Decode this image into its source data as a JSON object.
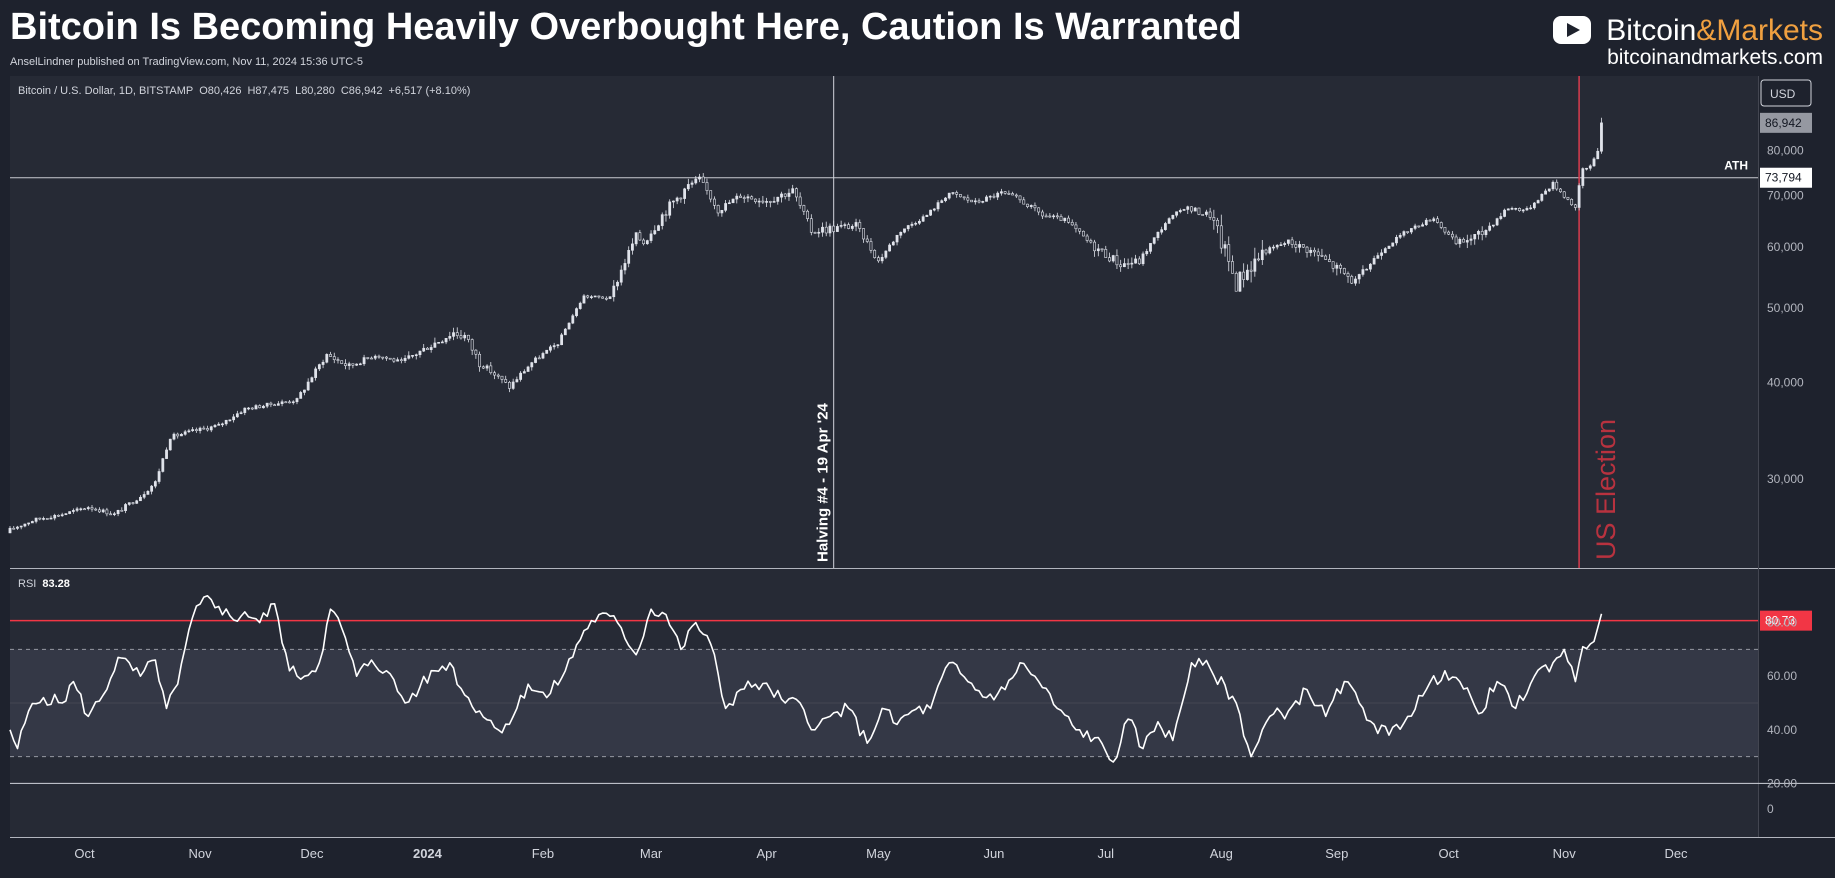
{
  "header": {
    "title": "Bitcoin Is Becoming Heavily Overbought Here, Caution Is Warranted",
    "published": "AnselLindner published on TradingView.com, Nov 11, 2024 15:36 UTC-5"
  },
  "brand": {
    "icon": "play-button-icon",
    "name_part1": "Bitcoin",
    "name_amp": "&",
    "name_part2": "Markets",
    "url": "bitcoinandmarkets.com"
  },
  "colors": {
    "background": "#1e222d",
    "pane": "#262a35",
    "candle": "#e0e3eb",
    "rsi_line": "#ffffff",
    "rsi_band": "#343846",
    "election_line": "#d93c4e",
    "overbought_line": "#f23645"
  },
  "chart_data": [
    {
      "type": "candlestick",
      "symbol_label": "Bitcoin / U.S. Dollar, 1D, BITSTAMP",
      "ohlc": {
        "O": "80,426",
        "H": "87,475",
        "L": "80,280",
        "C": "86,942"
      },
      "change": "+6,517 (+8.10%)",
      "currency": "USD",
      "last_price": 86942,
      "last_price_label": "86,942",
      "yscale": "log",
      "ylim": [
        23000,
        100000
      ],
      "y_ticks": [
        30000,
        40000,
        50000,
        60000,
        70000,
        80000
      ],
      "y_tick_labels": [
        "30,000",
        "40,000",
        "50,000",
        "60,000",
        "70,000",
        "80,000"
      ],
      "x_range": [
        "2023-09-11",
        "2024-12-23"
      ],
      "x_ticks": [
        {
          "date": "2023-10-01",
          "label": "Oct",
          "bold": false
        },
        {
          "date": "2023-11-01",
          "label": "Nov",
          "bold": false
        },
        {
          "date": "2023-12-01",
          "label": "Dec",
          "bold": false
        },
        {
          "date": "2024-01-01",
          "label": "2024",
          "bold": true
        },
        {
          "date": "2024-02-01",
          "label": "Feb",
          "bold": false
        },
        {
          "date": "2024-03-01",
          "label": "Mar",
          "bold": false
        },
        {
          "date": "2024-04-01",
          "label": "Apr",
          "bold": false
        },
        {
          "date": "2024-05-01",
          "label": "May",
          "bold": false
        },
        {
          "date": "2024-06-01",
          "label": "Jun",
          "bold": false
        },
        {
          "date": "2024-07-01",
          "label": "Jul",
          "bold": false
        },
        {
          "date": "2024-08-01",
          "label": "Aug",
          "bold": false
        },
        {
          "date": "2024-09-01",
          "label": "Sep",
          "bold": false
        },
        {
          "date": "2024-10-01",
          "label": "Oct",
          "bold": false
        },
        {
          "date": "2024-11-01",
          "label": "Nov",
          "bold": false
        },
        {
          "date": "2024-12-01",
          "label": "Dec",
          "bold": false
        }
      ],
      "ath": {
        "value": 73794,
        "label": "ATH",
        "value_label": "73,794"
      },
      "annotations": [
        {
          "date": "2024-04-19",
          "label": "Halving #4 - 19 Apr '24"
        },
        {
          "date": "2024-11-05",
          "label": "US Election"
        }
      ],
      "series": [
        {
          "name": "",
          "x": [
            "2023-09-11",
            "2023-09-18",
            "2023-09-25",
            "2023-10-02",
            "2023-10-09",
            "2023-10-16",
            "2023-10-20",
            "2023-10-24",
            "2023-10-30",
            "2023-11-06",
            "2023-11-13",
            "2023-11-20",
            "2023-11-27",
            "2023-12-05",
            "2023-12-11",
            "2023-12-18",
            "2023-12-25",
            "2024-01-01",
            "2024-01-08",
            "2024-01-11",
            "2024-01-15",
            "2024-01-23",
            "2024-01-29",
            "2024-02-05",
            "2024-02-12",
            "2024-02-19",
            "2024-02-26",
            "2024-02-28",
            "2024-03-05",
            "2024-03-11",
            "2024-03-14",
            "2024-03-19",
            "2024-03-25",
            "2024-04-01",
            "2024-04-08",
            "2024-04-13",
            "2024-04-19",
            "2024-04-25",
            "2024-05-01",
            "2024-05-07",
            "2024-05-14",
            "2024-05-20",
            "2024-05-27",
            "2024-06-03",
            "2024-06-07",
            "2024-06-14",
            "2024-06-20",
            "2024-06-27",
            "2024-07-05",
            "2024-07-10",
            "2024-07-17",
            "2024-07-22",
            "2024-07-29",
            "2024-08-05",
            "2024-08-12",
            "2024-08-19",
            "2024-08-26",
            "2024-09-06",
            "2024-09-13",
            "2024-09-20",
            "2024-09-27",
            "2024-10-03",
            "2024-10-10",
            "2024-10-17",
            "2024-10-22",
            "2024-10-29",
            "2024-11-04",
            "2024-11-06",
            "2024-11-08",
            "2024-11-10",
            "2024-11-11"
          ],
          "close": [
            25800,
            26600,
            27000,
            27600,
            27000,
            28500,
            29700,
            34000,
            34600,
            35200,
            37000,
            37500,
            38000,
            43500,
            42000,
            43500,
            42500,
            44500,
            46500,
            46000,
            42500,
            39500,
            42500,
            45000,
            51800,
            51500,
            62000,
            61000,
            67000,
            72000,
            73500,
            67000,
            70000,
            69000,
            71000,
            63000,
            63500,
            64000,
            57500,
            63000,
            66000,
            70500,
            68500,
            70500,
            69500,
            66000,
            65000,
            60500,
            57000,
            57500,
            64500,
            67500,
            66000,
            54000,
            59000,
            61000,
            59000,
            54000,
            59500,
            63000,
            65500,
            60500,
            62500,
            67500,
            67000,
            72500,
            67500,
            75500,
            76500,
            80400,
            86942
          ],
          "high": [
            26200,
            27000,
            27400,
            28000,
            27600,
            29000,
            30200,
            35000,
            35300,
            36000,
            37800,
            38200,
            38800,
            44500,
            43200,
            44200,
            43500,
            45500,
            48000,
            47000,
            43500,
            40500,
            43800,
            46000,
            52500,
            52500,
            63500,
            64000,
            69000,
            73300,
            73794,
            68500,
            71500,
            71500,
            72500,
            65500,
            65000,
            64800,
            59500,
            64500,
            67500,
            71800,
            70500,
            72000,
            71500,
            67500,
            66500,
            62000,
            58500,
            59000,
            65500,
            68500,
            70000,
            62500,
            61000,
            61500,
            64000,
            56500,
            60500,
            64000,
            66500,
            64000,
            63500,
            68500,
            68500,
            73500,
            69500,
            76500,
            77500,
            81500,
            87475
          ],
          "low": [
            25500,
            26200,
            26600,
            27200,
            26600,
            28000,
            29000,
            33800,
            34000,
            34800,
            36500,
            37000,
            37600,
            41800,
            40800,
            43000,
            41800,
            42500,
            44500,
            42000,
            41500,
            38500,
            42000,
            44800,
            51500,
            50800,
            57000,
            58000,
            62500,
            68000,
            71000,
            64000,
            68500,
            65000,
            69000,
            60500,
            59500,
            62000,
            56500,
            62500,
            65500,
            69500,
            67000,
            70000,
            68500,
            65000,
            64000,
            58000,
            53500,
            56000,
            63500,
            66000,
            65000,
            49000,
            58000,
            60000,
            58000,
            52800,
            58000,
            62500,
            64500,
            60000,
            58800,
            66500,
            66000,
            71000,
            66800,
            70500,
            74500,
            77000,
            80280
          ]
        }
      ]
    },
    {
      "type": "line",
      "indicator_label": "RSI",
      "indicator_value": "83.28",
      "ylim": [
        0,
        100
      ],
      "y_ticks": [
        20,
        40,
        60,
        80
      ],
      "y_tick_labels": [
        "20.00",
        "40.00",
        "60.00",
        "80.00"
      ],
      "upper_band": 70,
      "lower_band": 30,
      "overbought_level": 80.73,
      "overbought_label": "80.73",
      "series": [
        {
          "name": "",
          "x": [
            "2023-09-11",
            "2023-09-13",
            "2023-09-16",
            "2023-09-20",
            "2023-09-25",
            "2023-09-28",
            "2023-10-02",
            "2023-10-06",
            "2023-10-10",
            "2023-10-16",
            "2023-10-20",
            "2023-10-23",
            "2023-10-26",
            "2023-10-30",
            "2023-11-03",
            "2023-11-06",
            "2023-11-10",
            "2023-11-13",
            "2023-11-17",
            "2023-11-21",
            "2023-11-25",
            "2023-11-29",
            "2023-12-03",
            "2023-12-06",
            "2023-12-09",
            "2023-12-13",
            "2023-12-17",
            "2023-12-21",
            "2023-12-26",
            "2023-12-30",
            "2024-01-03",
            "2024-01-07",
            "2024-01-11",
            "2024-01-15",
            "2024-01-20",
            "2024-01-24",
            "2024-01-28",
            "2024-02-02",
            "2024-02-07",
            "2024-02-12",
            "2024-02-16",
            "2024-02-21",
            "2024-02-26",
            "2024-03-01",
            "2024-03-05",
            "2024-03-09",
            "2024-03-13",
            "2024-03-17",
            "2024-03-21",
            "2024-03-25",
            "2024-03-29",
            "2024-04-02",
            "2024-04-06",
            "2024-04-10",
            "2024-04-14",
            "2024-04-18",
            "2024-04-23",
            "2024-04-28",
            "2024-05-02",
            "2024-05-06",
            "2024-05-10",
            "2024-05-15",
            "2024-05-20",
            "2024-05-25",
            "2024-05-30",
            "2024-06-04",
            "2024-06-08",
            "2024-06-13",
            "2024-06-18",
            "2024-06-23",
            "2024-06-28",
            "2024-07-03",
            "2024-07-07",
            "2024-07-11",
            "2024-07-15",
            "2024-07-19",
            "2024-07-24",
            "2024-07-29",
            "2024-08-05",
            "2024-08-09",
            "2024-08-14",
            "2024-08-19",
            "2024-08-24",
            "2024-08-29",
            "2024-09-03",
            "2024-09-07",
            "2024-09-11",
            "2024-09-15",
            "2024-09-20",
            "2024-09-25",
            "2024-09-30",
            "2024-10-04",
            "2024-10-09",
            "2024-10-14",
            "2024-10-19",
            "2024-10-24",
            "2024-10-29",
            "2024-11-01",
            "2024-11-04",
            "2024-11-06",
            "2024-11-08",
            "2024-11-10",
            "2024-11-11"
          ],
          "values": [
            40,
            33,
            47,
            52,
            50,
            58,
            45,
            53,
            67,
            60,
            66,
            48,
            57,
            82,
            90,
            86,
            81,
            84,
            80,
            87,
            62,
            60,
            65,
            85,
            78,
            60,
            66,
            62,
            50,
            56,
            62,
            65,
            53,
            47,
            40,
            45,
            57,
            52,
            62,
            77,
            83,
            80,
            68,
            85,
            83,
            70,
            80,
            72,
            48,
            55,
            57,
            55,
            50,
            50,
            40,
            45,
            48,
            35,
            48,
            42,
            47,
            48,
            65,
            58,
            52,
            55,
            65,
            58,
            48,
            40,
            37,
            28,
            44,
            33,
            43,
            36,
            65,
            63,
            50,
            30,
            45,
            47,
            55,
            45,
            58,
            50,
            42,
            38,
            45,
            55,
            62,
            58,
            46,
            58,
            48,
            60,
            65,
            70,
            58,
            71,
            72,
            78,
            83.28
          ]
        }
      ]
    }
  ]
}
